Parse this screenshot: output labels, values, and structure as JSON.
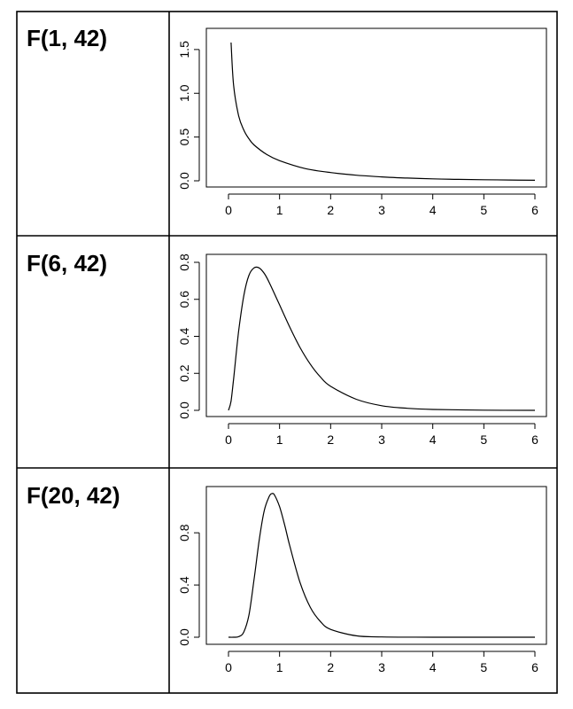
{
  "rows": [
    {
      "label": "F(1, 42)"
    },
    {
      "label": "F(6, 42)"
    },
    {
      "label": "F(20, 42)"
    }
  ],
  "chart_data": [
    {
      "type": "line",
      "title": "",
      "xlabel": "",
      "ylabel": "",
      "distribution": {
        "name": "F",
        "df1": 1,
        "df2": 42
      },
      "xlim": [
        0,
        6
      ],
      "ylim": [
        0,
        1.6
      ],
      "x_ticks": [
        "0",
        "1",
        "2",
        "3",
        "4",
        "5",
        "6"
      ],
      "y_ticks": [
        "0.0",
        "0.5",
        "1.0",
        "1.5"
      ],
      "series": [
        {
          "x": [
            0.05,
            0.1,
            0.2,
            0.3,
            0.4,
            0.5,
            0.75,
            1,
            1.5,
            2,
            2.5,
            3,
            3.5,
            4,
            4.5,
            5,
            5.5,
            6
          ],
          "y": [
            1.58,
            1.09,
            0.74,
            0.58,
            0.48,
            0.41,
            0.3,
            0.23,
            0.14,
            0.094,
            0.064,
            0.045,
            0.031,
            0.022,
            0.016,
            0.012,
            0.009,
            0.006
          ]
        }
      ]
    },
    {
      "type": "line",
      "title": "",
      "xlabel": "",
      "ylabel": "",
      "distribution": {
        "name": "F",
        "df1": 6,
        "df2": 42
      },
      "xlim": [
        0,
        6
      ],
      "ylim": [
        0,
        0.8
      ],
      "x_ticks": [
        "0",
        "1",
        "2",
        "3",
        "4",
        "5",
        "6"
      ],
      "y_ticks": [
        "0.0",
        "0.2",
        "0.4",
        "0.6",
        "0.8"
      ],
      "series": [
        {
          "x": [
            0,
            0.05,
            0.1,
            0.2,
            0.3,
            0.4,
            0.5,
            0.6,
            0.7,
            0.8,
            1,
            1.2,
            1.4,
            1.6,
            1.8,
            2,
            2.5,
            3,
            3.5,
            4,
            5,
            6
          ],
          "y": [
            0,
            0.05,
            0.17,
            0.43,
            0.62,
            0.73,
            0.77,
            0.77,
            0.74,
            0.69,
            0.57,
            0.45,
            0.34,
            0.25,
            0.18,
            0.13,
            0.06,
            0.025,
            0.011,
            0.005,
            0.001,
            0.0002
          ]
        }
      ]
    },
    {
      "type": "line",
      "title": "",
      "xlabel": "",
      "ylabel": "",
      "distribution": {
        "name": "F",
        "df1": 20,
        "df2": 42
      },
      "xlim": [
        0,
        6
      ],
      "ylim": [
        0,
        1.1
      ],
      "x_ticks": [
        "0",
        "1",
        "2",
        "3",
        "4",
        "5",
        "6"
      ],
      "y_ticks": [
        "0.0",
        "0.4",
        "0.8"
      ],
      "series": [
        {
          "x": [
            0,
            0.1,
            0.2,
            0.3,
            0.4,
            0.5,
            0.6,
            0.7,
            0.8,
            0.85,
            0.9,
            1,
            1.1,
            1.2,
            1.4,
            1.6,
            1.8,
            2,
            2.5,
            3,
            4,
            5,
            6
          ],
          "y": [
            0,
            0.0002,
            0.004,
            0.04,
            0.17,
            0.44,
            0.74,
            0.97,
            1.08,
            1.1,
            1.09,
            1.0,
            0.86,
            0.7,
            0.42,
            0.23,
            0.12,
            0.06,
            0.011,
            0.002,
            0.0001,
            0,
            0
          ]
        }
      ]
    }
  ]
}
